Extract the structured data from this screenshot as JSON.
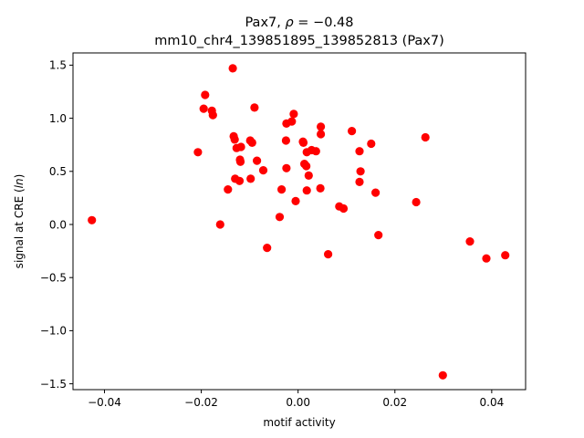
{
  "chart_data": {
    "type": "scatter",
    "title_line1_prefix": "Pax7, ",
    "title_line1_rho": "ρ",
    "title_line1_eq": " = −0.48",
    "title_line2": "mm10_chr4_139851895_139852813 (Pax7)",
    "xlabel": "motif activity",
    "ylabel_prefix": "signal at CRE (",
    "ylabel_italic": "ln",
    "ylabel_suffix": ")",
    "xlim": [
      -0.0465,
      0.047
    ],
    "ylim": [
      -1.555,
      1.615
    ],
    "xticks": [
      -0.04,
      -0.02,
      0.0,
      0.02,
      0.04
    ],
    "xtick_labels": [
      "−0.04",
      "−0.02",
      "0.00",
      "0.02",
      "0.04"
    ],
    "yticks": [
      -1.5,
      -1.0,
      -0.5,
      0.0,
      0.5,
      1.0,
      1.5
    ],
    "ytick_labels": [
      "−1.5",
      "−1.0",
      "−0.5",
      "0.0",
      "0.5",
      "1.0",
      "1.5"
    ],
    "grid": false,
    "marker_color": "#ff0000",
    "points": [
      [
        -0.0426,
        0.04
      ],
      [
        -0.0207,
        0.68
      ],
      [
        -0.0192,
        1.22
      ],
      [
        -0.0195,
        1.09
      ],
      [
        -0.0178,
        1.07
      ],
      [
        -0.0176,
        1.03
      ],
      [
        -0.0161,
        0.0
      ],
      [
        -0.0145,
        0.33
      ],
      [
        -0.0135,
        1.47
      ],
      [
        -0.0133,
        0.83
      ],
      [
        -0.0131,
        0.8
      ],
      [
        -0.0127,
        0.72
      ],
      [
        -0.013,
        0.43
      ],
      [
        -0.0121,
        0.41
      ],
      [
        -0.012,
        0.61
      ],
      [
        -0.0119,
        0.59
      ],
      [
        -0.0118,
        0.73
      ],
      [
        -0.0099,
        0.79
      ],
      [
        -0.0095,
        0.77
      ],
      [
        -0.0098,
        0.43
      ],
      [
        -0.009,
        1.1
      ],
      [
        -0.0085,
        0.6
      ],
      [
        -0.0072,
        0.51
      ],
      [
        -0.0064,
        -0.22
      ],
      [
        -0.0038,
        0.07
      ],
      [
        -0.0034,
        0.33
      ],
      [
        -0.0024,
        0.95
      ],
      [
        -0.0025,
        0.79
      ],
      [
        -0.0024,
        0.53
      ],
      [
        -0.0013,
        0.97
      ],
      [
        -0.0009,
        1.04
      ],
      [
        -0.0005,
        0.22
      ],
      [
        0.001,
        0.78
      ],
      [
        0.0011,
        0.77
      ],
      [
        0.0013,
        0.57
      ],
      [
        0.0017,
        0.55
      ],
      [
        0.0018,
        0.32
      ],
      [
        0.0018,
        0.68
      ],
      [
        0.0022,
        0.46
      ],
      [
        0.0028,
        0.7
      ],
      [
        0.0037,
        0.69
      ],
      [
        0.0047,
        0.92
      ],
      [
        0.0047,
        0.85
      ],
      [
        0.0046,
        0.34
      ],
      [
        0.0062,
        -0.28
      ],
      [
        0.0085,
        0.17
      ],
      [
        0.0094,
        0.15
      ],
      [
        0.0111,
        0.88
      ],
      [
        0.0127,
        0.69
      ],
      [
        0.0129,
        0.5
      ],
      [
        0.0127,
        0.4
      ],
      [
        0.0151,
        0.76
      ],
      [
        0.016,
        0.3
      ],
      [
        0.0166,
        -0.1
      ],
      [
        0.0244,
        0.21
      ],
      [
        0.0263,
        0.82
      ],
      [
        0.0299,
        -1.42
      ],
      [
        0.0355,
        -0.16
      ],
      [
        0.0389,
        -0.32
      ],
      [
        0.0428,
        -0.29
      ]
    ]
  }
}
